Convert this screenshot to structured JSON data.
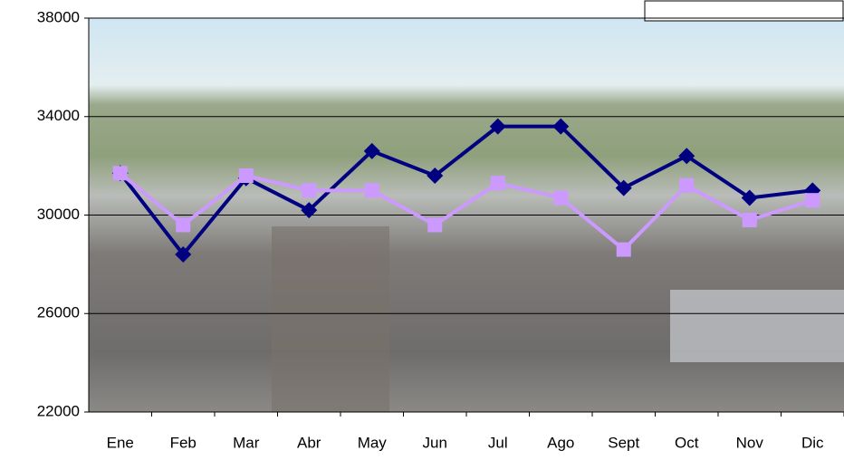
{
  "chart_data": {
    "type": "line",
    "categories": [
      "Ene",
      "Feb",
      "Mar",
      "Abr",
      "May",
      "Jun",
      "Jul",
      "Ago",
      "Sept",
      "Oct",
      "Nov",
      "Dic"
    ],
    "series": [
      {
        "color": "#000080",
        "marker": "diamond",
        "values": [
          31700,
          28400,
          31500,
          30200,
          32600,
          31600,
          33600,
          33600,
          31100,
          32400,
          30700,
          31000
        ]
      },
      {
        "color": "#cc99ff",
        "marker": "square",
        "values": [
          31700,
          29600,
          31600,
          31000,
          31000,
          29600,
          31300,
          30700,
          28600,
          31200,
          29800,
          30600
        ]
      }
    ],
    "ylim": [
      22000,
      38000
    ],
    "yticks": [
      22000,
      26000,
      30000,
      34000,
      38000
    ],
    "grid": true
  }
}
